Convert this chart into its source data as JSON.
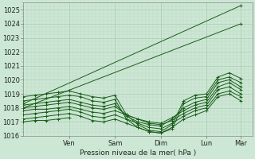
{
  "bg_color": "#cce8d4",
  "grid_major_color": "#aaccb4",
  "grid_minor_color": "#bdd9c5",
  "line_color": "#1a5c1a",
  "xlabel": "Pression niveau de la mer( hPa )",
  "ylim": [
    1016.0,
    1025.5
  ],
  "xlim": [
    0,
    120
  ],
  "yticks": [
    1016,
    1017,
    1018,
    1019,
    1020,
    1021,
    1022,
    1023,
    1024,
    1025
  ],
  "day_labels": [
    "Ven",
    "Sam",
    "Dim",
    "Lun",
    "Mar"
  ],
  "day_positions": [
    24,
    48,
    72,
    96,
    114
  ],
  "vline_positions": [
    24,
    48,
    72,
    96,
    114
  ],
  "series": [
    {
      "x": [
        0,
        114
      ],
      "y": [
        1018.3,
        1025.3
      ]
    },
    {
      "x": [
        0,
        114
      ],
      "y": [
        1018.0,
        1024.0
      ]
    },
    {
      "x": [
        0,
        6,
        12,
        18,
        24,
        30,
        36,
        42,
        48,
        54,
        60,
        66,
        72,
        78,
        84,
        90,
        96,
        102,
        108,
        114
      ],
      "y": [
        1018.8,
        1018.9,
        1019.0,
        1019.1,
        1019.2,
        1019.0,
        1018.8,
        1018.7,
        1018.9,
        1017.5,
        1016.8,
        1016.4,
        1016.3,
        1016.8,
        1018.5,
        1018.9,
        1019.0,
        1020.2,
        1020.5,
        1020.1
      ]
    },
    {
      "x": [
        0,
        6,
        12,
        18,
        24,
        30,
        36,
        42,
        48,
        54,
        60,
        66,
        72,
        78,
        84,
        90,
        96,
        102,
        108,
        114
      ],
      "y": [
        1018.5,
        1018.6,
        1018.7,
        1018.8,
        1018.9,
        1018.8,
        1018.5,
        1018.4,
        1018.6,
        1017.2,
        1016.6,
        1016.3,
        1016.2,
        1016.5,
        1018.3,
        1018.7,
        1018.8,
        1020.0,
        1020.2,
        1019.8
      ]
    },
    {
      "x": [
        0,
        6,
        12,
        18,
        24,
        30,
        36,
        42,
        48,
        54,
        60,
        66,
        72,
        78,
        84,
        90,
        96,
        102,
        108,
        114
      ],
      "y": [
        1018.2,
        1018.3,
        1018.4,
        1018.5,
        1018.6,
        1018.4,
        1018.2,
        1018.1,
        1018.3,
        1017.4,
        1017.0,
        1016.8,
        1016.7,
        1017.2,
        1018.0,
        1018.4,
        1018.6,
        1019.8,
        1020.0,
        1019.5
      ]
    },
    {
      "x": [
        0,
        6,
        12,
        18,
        24,
        30,
        36,
        42,
        48,
        54,
        60,
        66,
        72,
        78,
        84,
        90,
        96,
        102,
        108,
        114
      ],
      "y": [
        1018.0,
        1018.1,
        1018.2,
        1018.3,
        1018.4,
        1018.2,
        1018.0,
        1017.9,
        1018.1,
        1017.5,
        1017.2,
        1017.0,
        1016.9,
        1017.3,
        1017.8,
        1018.2,
        1018.4,
        1019.5,
        1019.8,
        1019.3
      ]
    },
    {
      "x": [
        0,
        6,
        12,
        18,
        24,
        30,
        36,
        42,
        48,
        54,
        60,
        66,
        72,
        78,
        84,
        90,
        96,
        102,
        108,
        114
      ],
      "y": [
        1017.8,
        1017.9,
        1017.9,
        1018.0,
        1018.1,
        1017.9,
        1017.7,
        1017.6,
        1017.8,
        1017.5,
        1017.2,
        1016.9,
        1016.8,
        1017.1,
        1017.6,
        1018.0,
        1018.2,
        1019.3,
        1019.5,
        1019.0
      ]
    },
    {
      "x": [
        0,
        6,
        12,
        18,
        24,
        30,
        36,
        42,
        48,
        54,
        60,
        66,
        72,
        78,
        84,
        90,
        96,
        102,
        108,
        114
      ],
      "y": [
        1017.5,
        1017.6,
        1017.7,
        1017.8,
        1017.9,
        1017.7,
        1017.4,
        1017.3,
        1017.5,
        1017.2,
        1016.9,
        1016.6,
        1016.5,
        1016.9,
        1017.4,
        1017.8,
        1018.0,
        1019.0,
        1019.2,
        1018.8
      ]
    },
    {
      "x": [
        0,
        6,
        12,
        18,
        24,
        30,
        36,
        42,
        48,
        54,
        60,
        66,
        72,
        78,
        84,
        90,
        96,
        102,
        108,
        114
      ],
      "y": [
        1017.2,
        1017.3,
        1017.4,
        1017.5,
        1017.6,
        1017.4,
        1017.1,
        1017.0,
        1017.2,
        1016.9,
        1016.6,
        1016.3,
        1016.2,
        1016.6,
        1017.2,
        1017.5,
        1017.8,
        1018.8,
        1019.0,
        1018.5
      ]
    },
    {
      "x": [
        0,
        6,
        12,
        18,
        24
      ],
      "y": [
        1017.0,
        1017.1,
        1017.1,
        1017.2,
        1017.3
      ]
    }
  ]
}
